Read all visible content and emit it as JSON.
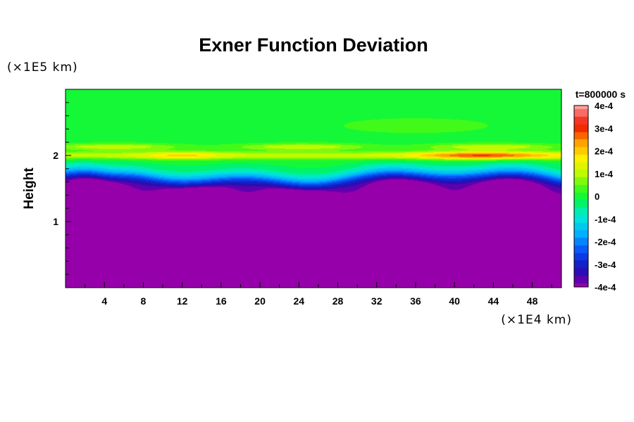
{
  "chart_data": {
    "type": "heatmap",
    "title": "Exner Function Deviation",
    "xlabel": "",
    "ylabel": "Height",
    "x_unit": "(×1E4 km)",
    "y_unit": "(×1E5 km)",
    "time_label": "t=800000 s",
    "xlim": [
      0,
      51
    ],
    "ylim": [
      0,
      3
    ],
    "x_ticks": [
      "4",
      "8",
      "12",
      "16",
      "20",
      "24",
      "28",
      "32",
      "36",
      "40",
      "44",
      "48"
    ],
    "x_tick_values": [
      4,
      8,
      12,
      16,
      20,
      24,
      28,
      32,
      36,
      40,
      44,
      48
    ],
    "y_ticks": [
      "1",
      "2"
    ],
    "y_tick_values": [
      1,
      2
    ],
    "colorbar": {
      "min": -0.0004,
      "max": 0.0004,
      "labels": [
        "4e-4",
        "3e-4",
        "2e-4",
        "1e-4",
        "0",
        "-1e-4",
        "-2e-4",
        "-3e-4",
        "-4e-4"
      ],
      "label_values": [
        0.0004,
        0.0003,
        0.0002,
        0.0001,
        0,
        -0.0001,
        -0.0002,
        -0.0003,
        -0.0004
      ]
    },
    "field_description": {
      "lower_region_value": -0.0004,
      "upper_region_value": 0.0,
      "transition_height_range": [
        1.3,
        1.9
      ],
      "positive_band_height": 2.0,
      "positive_band_peak": 0.00033
    }
  }
}
